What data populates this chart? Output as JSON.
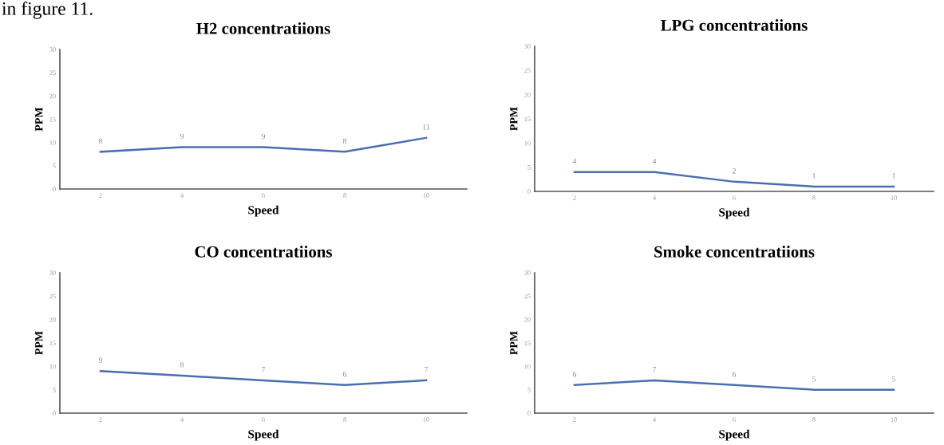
{
  "chart_data": [
    {
      "type": "line",
      "title": "H2 concentratiions",
      "xlabel": "Speed",
      "ylabel": "PPM",
      "categories": [
        "2",
        "4",
        "6",
        "8",
        "10"
      ],
      "series": [
        {
          "color": "#4a6fb0",
          "values": [
            8,
            9,
            9,
            8,
            11
          ]
        }
      ],
      "ylim": [
        0,
        30
      ],
      "yticks": [
        0,
        5,
        10,
        15,
        20,
        25,
        30
      ],
      "data_labels": true,
      "grid": false,
      "marker": "none",
      "line_style": "solid",
      "annotations": [
        "in figure 11."
      ]
    },
    {
      "type": "line",
      "title": "LPG concentratiions",
      "xlabel": "Speed",
      "ylabel": "PPM",
      "categories": [
        "2",
        "4",
        "6",
        "8",
        "10"
      ],
      "series": [
        {
          "color": "#4a6fb0",
          "values": [
            4,
            4,
            2,
            1,
            1
          ]
        }
      ],
      "ylim": [
        0,
        30
      ],
      "yticks": [
        0,
        5,
        10,
        15,
        20,
        25,
        30
      ],
      "data_labels": true,
      "grid": false,
      "marker": "none",
      "line_style": "solid"
    },
    {
      "type": "line",
      "title": "CO concentratiions",
      "xlabel": "Speed",
      "ylabel": "PPM",
      "categories": [
        "2",
        "4",
        "6",
        "8",
        "10"
      ],
      "series": [
        {
          "color": "#4a6fb0",
          "values": [
            9,
            8,
            7,
            6,
            7
          ]
        }
      ],
      "ylim": [
        0,
        30
      ],
      "yticks": [
        0,
        5,
        10,
        15,
        20,
        25,
        30
      ],
      "data_labels": true,
      "grid": false,
      "marker": "none",
      "line_style": "solid"
    },
    {
      "type": "line",
      "title": "Smoke concentratiions",
      "xlabel": "Speed",
      "ylabel": "PPM",
      "categories": [
        "2",
        "4",
        "6",
        "8",
        "10"
      ],
      "series": [
        {
          "color": "#4a6fb0",
          "values": [
            6,
            7,
            6,
            5,
            5
          ]
        }
      ],
      "ylim": [
        0,
        30
      ],
      "yticks": [
        0,
        5,
        10,
        15,
        20,
        25,
        30
      ],
      "data_labels": true,
      "grid": false,
      "marker": "none",
      "line_style": "solid"
    }
  ]
}
